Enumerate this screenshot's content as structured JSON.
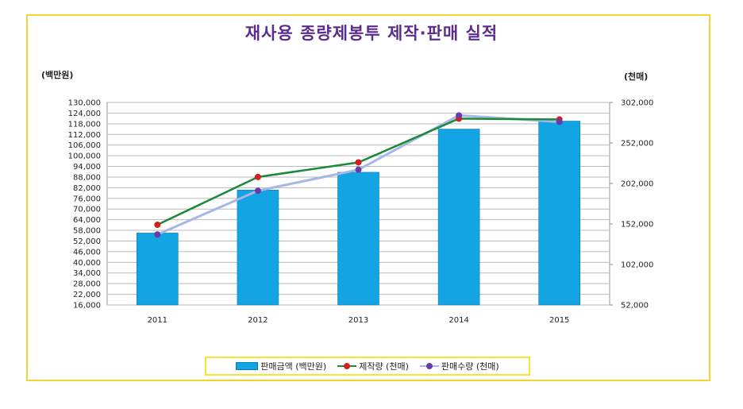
{
  "chart_data": {
    "type": "bar",
    "title": "재사용 종량제봉투 제작·판매 실적",
    "left_axis_unit": "(백만원)",
    "right_axis_unit": "(천매)",
    "categories": [
      "2011",
      "2012",
      "2013",
      "2014",
      "2015"
    ],
    "left_ticks": [
      "130,000",
      "124,000",
      "118,000",
      "112,000",
      "106,000",
      "100,000",
      "94,000",
      "88,000",
      "82,000",
      "76,000",
      "70,000",
      "64,000",
      "58,000",
      "52,000",
      "46,000",
      "40,000",
      "34,000",
      "28,000",
      "22,000",
      "16,000"
    ],
    "right_ticks": [
      "302,000",
      "252,000",
      "202,000",
      "152,000",
      "102,000",
      "52,000"
    ],
    "ylim_left": [
      16000,
      130000
    ],
    "ylim_right": [
      52000,
      302000
    ],
    "series": [
      {
        "name": "판매금액 (백만원)",
        "kind": "bar",
        "axis": "left",
        "color": "#12a4e3",
        "values": [
          56500,
          80700,
          90700,
          115000,
          119500
        ]
      },
      {
        "name": "제작량 (천매)",
        "kind": "line",
        "axis": "right",
        "color": "#1a8a3a",
        "marker": "#d42020",
        "values": [
          151000,
          210000,
          228000,
          282000,
          281000
        ]
      },
      {
        "name": "판매수량 (천매)",
        "kind": "line",
        "axis": "right",
        "color": "#a7b7e4",
        "marker": "#6a3aa8",
        "values": [
          139000,
          193000,
          219000,
          286000,
          278000
        ]
      }
    ],
    "grid": true,
    "legend": "bottom"
  }
}
